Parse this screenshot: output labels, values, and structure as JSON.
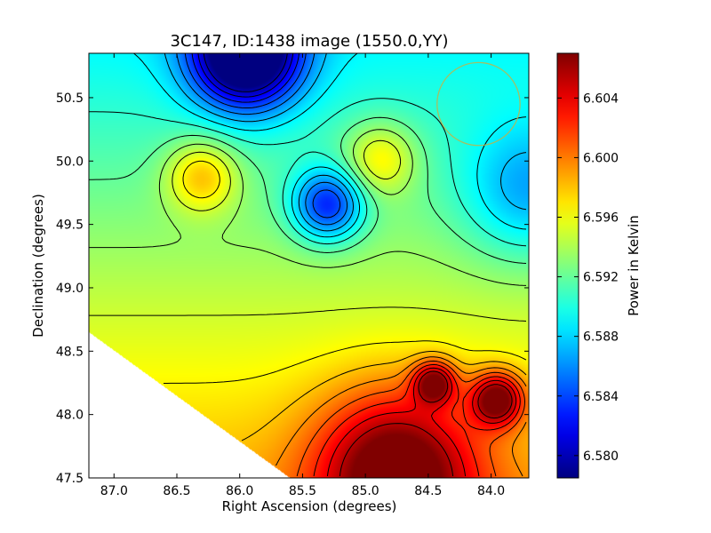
{
  "chart_data": {
    "type": "heatmap",
    "title": "3C147, ID:1438 image (1550.0,YY)",
    "xlabel": "Right Ascension (degrees)",
    "ylabel": "Declination (degrees)",
    "colorbar_label": "Power in Kelvin",
    "xlim": [
      87.2,
      83.7
    ],
    "ylim": [
      47.5,
      50.85
    ],
    "x_reversed": true,
    "x_ticks": [
      87.0,
      86.5,
      86.0,
      85.5,
      85.0,
      84.5,
      84.0
    ],
    "x_tick_labels": [
      "87.0",
      "86.5",
      "86.0",
      "85.5",
      "85.0",
      "84.5",
      "84.0"
    ],
    "y_ticks": [
      47.5,
      48.0,
      48.5,
      49.0,
      49.5,
      50.0,
      50.5
    ],
    "y_tick_labels": [
      "47.5",
      "48.0",
      "48.5",
      "49.0",
      "49.5",
      "50.0",
      "50.5"
    ],
    "colorbar_range": [
      6.5785,
      6.607
    ],
    "colorbar_ticks": [
      6.58,
      6.584,
      6.588,
      6.592,
      6.596,
      6.6,
      6.604
    ],
    "colorbar_tick_labels": [
      "6.580",
      "6.584",
      "6.588",
      "6.592",
      "6.596",
      "6.600",
      "6.604"
    ],
    "colormap": "jet",
    "features": [
      {
        "kind": "minimum",
        "ra": 85.95,
        "dec": 50.85,
        "value": 6.5785
      },
      {
        "kind": "minimum",
        "ra": 85.3,
        "dec": 49.65,
        "value": 6.586
      },
      {
        "kind": "minimum",
        "ra": 83.7,
        "dec": 49.75,
        "value": 6.59
      },
      {
        "kind": "maximum",
        "ra": 86.3,
        "dec": 49.88,
        "value": 6.6015
      },
      {
        "kind": "maximum",
        "ra": 84.88,
        "dec": 50.02,
        "value": 6.6005
      },
      {
        "kind": "maximum",
        "ra": 84.75,
        "dec": 47.55,
        "value": 6.607
      },
      {
        "kind": "maximum",
        "ra": 83.95,
        "dec": 48.12,
        "value": 6.6065
      },
      {
        "kind": "maximum",
        "ra": 84.45,
        "dec": 48.25,
        "value": 6.605
      }
    ],
    "beam_circle": {
      "ra": 84.1,
      "dec": 50.45,
      "radius_deg": 0.33,
      "color": "#c8b040"
    },
    "blank_region": "lower-left triangle outside survey coverage",
    "contours": true,
    "grid": false
  }
}
